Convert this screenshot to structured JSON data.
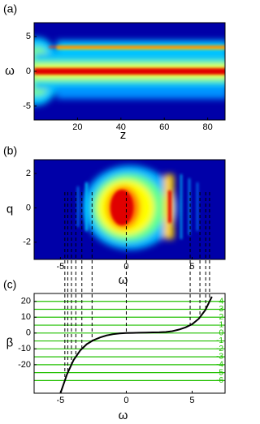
{
  "chart_data": [
    {
      "type": "heatmap",
      "label": "(a)",
      "xlabel": "z",
      "ylabel": "ω",
      "xlim": [
        0,
        88
      ],
      "ylim": [
        -7,
        7
      ],
      "xticks": [
        20,
        40,
        60,
        80
      ],
      "yticks": [
        -5,
        0,
        5
      ]
    },
    {
      "type": "heatmap",
      "label": "(b)",
      "xlabel": "ω",
      "ylabel": "q",
      "xlim": [
        -7,
        7.5
      ],
      "ylim": [
        -3,
        2.8
      ],
      "xticks": [
        -5,
        0,
        5
      ],
      "yticks": [
        -2,
        0,
        2
      ]
    },
    {
      "type": "line",
      "label": "(c)",
      "xlabel": "ω",
      "ylabel": "β",
      "xlim": [
        -7,
        7.5
      ],
      "ylim": [
        -38,
        25
      ],
      "xticks": [
        -5,
        0,
        5
      ],
      "yticks": [
        -20,
        -10,
        0,
        10,
        20
      ],
      "x": [
        -5,
        -4.5,
        -4,
        -3.5,
        -3,
        -2.5,
        -2,
        -1.5,
        -1,
        -0.5,
        0,
        0.5,
        1,
        1.5,
        2,
        2.5,
        3,
        3.5,
        4,
        4.5,
        5,
        5.5,
        6,
        6.5
      ],
      "series": [
        {
          "color": "#000000",
          "values": [
            -38,
            -26,
            -17,
            -11,
            -7,
            -4.5,
            -2.8,
            -1.5,
            -0.7,
            -0.2,
            0,
            0.1,
            0.2,
            0.3,
            0.4,
            0.5,
            0.7,
            1.2,
            2.2,
            3.6,
            5.6,
            9,
            14.5,
            23
          ]
        }
      ],
      "hline_color": "#22c000",
      "hlines": [
        {
          "value": 20,
          "label": "4"
        },
        {
          "value": 15,
          "label": "3"
        },
        {
          "value": 10,
          "label": "2"
        },
        {
          "value": 5,
          "label": "1"
        },
        {
          "value": 0,
          "label": "0"
        },
        {
          "value": -5,
          "label": "-1"
        },
        {
          "value": -10,
          "label": "-2"
        },
        {
          "value": -15,
          "label": "-3"
        },
        {
          "value": -20,
          "label": "-4"
        },
        {
          "value": -25,
          "label": "-5"
        },
        {
          "value": -30,
          "label": "-6"
        }
      ]
    }
  ]
}
